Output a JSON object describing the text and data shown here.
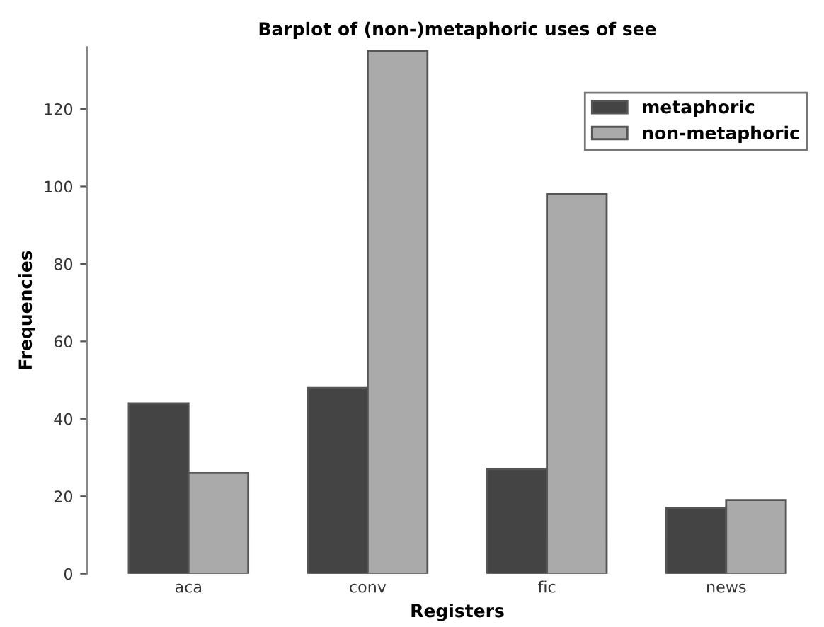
{
  "chart_data": {
    "type": "bar",
    "title": "Barplot of (non-)metaphoric uses of see",
    "xlabel": "Registers",
    "ylabel": "Frequencies",
    "categories": [
      "aca",
      "conv",
      "fic",
      "news"
    ],
    "series": [
      {
        "name": "metaphoric",
        "color": "#444444",
        "values": [
          44,
          48,
          27,
          17
        ]
      },
      {
        "name": "non-metaphoric",
        "color": "#aaaaaa",
        "values": [
          26,
          135,
          98,
          19
        ]
      }
    ],
    "ylim": [
      0,
      136
    ],
    "yticks": [
      0,
      20,
      40,
      60,
      80,
      100,
      120
    ],
    "grid": false,
    "legend": "top right"
  }
}
